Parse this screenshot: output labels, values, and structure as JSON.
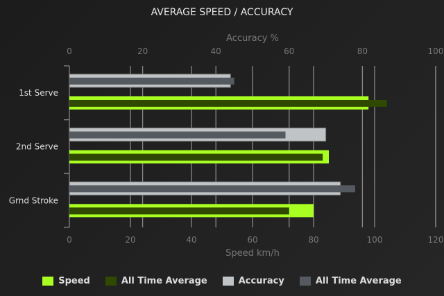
{
  "chart_data": {
    "type": "bar",
    "orientation": "horizontal",
    "title": "AVERAGE SPEED / ACCURACY",
    "categories": [
      "1st Serve",
      "2nd Serve",
      "Grnd Stroke"
    ],
    "top_axis": {
      "label": "Accuracy %",
      "range": [
        0,
        100
      ],
      "ticks": [
        "0",
        "20",
        "40",
        "60",
        "80",
        "100"
      ]
    },
    "bottom_axis": {
      "label": "Speed km/h",
      "range": [
        0,
        120
      ],
      "ticks": [
        "0",
        "20",
        "40",
        "60",
        "80",
        "100",
        "120"
      ]
    },
    "grid": true,
    "legend_position": "bottom",
    "series": [
      {
        "name": "Speed",
        "axis": "bottom",
        "color": "#aaff22",
        "values": [
          98,
          85,
          80
        ]
      },
      {
        "name": "All Time Average",
        "axis": "bottom",
        "color": "#2f4a00",
        "values": [
          104,
          83,
          72
        ]
      },
      {
        "name": "Accuracy",
        "axis": "top",
        "color": "#c0c4c6",
        "values": [
          44,
          70,
          74
        ]
      },
      {
        "name": "All Time Average",
        "axis": "top",
        "color": "#555a60",
        "values": [
          45,
          59,
          78
        ]
      }
    ]
  }
}
